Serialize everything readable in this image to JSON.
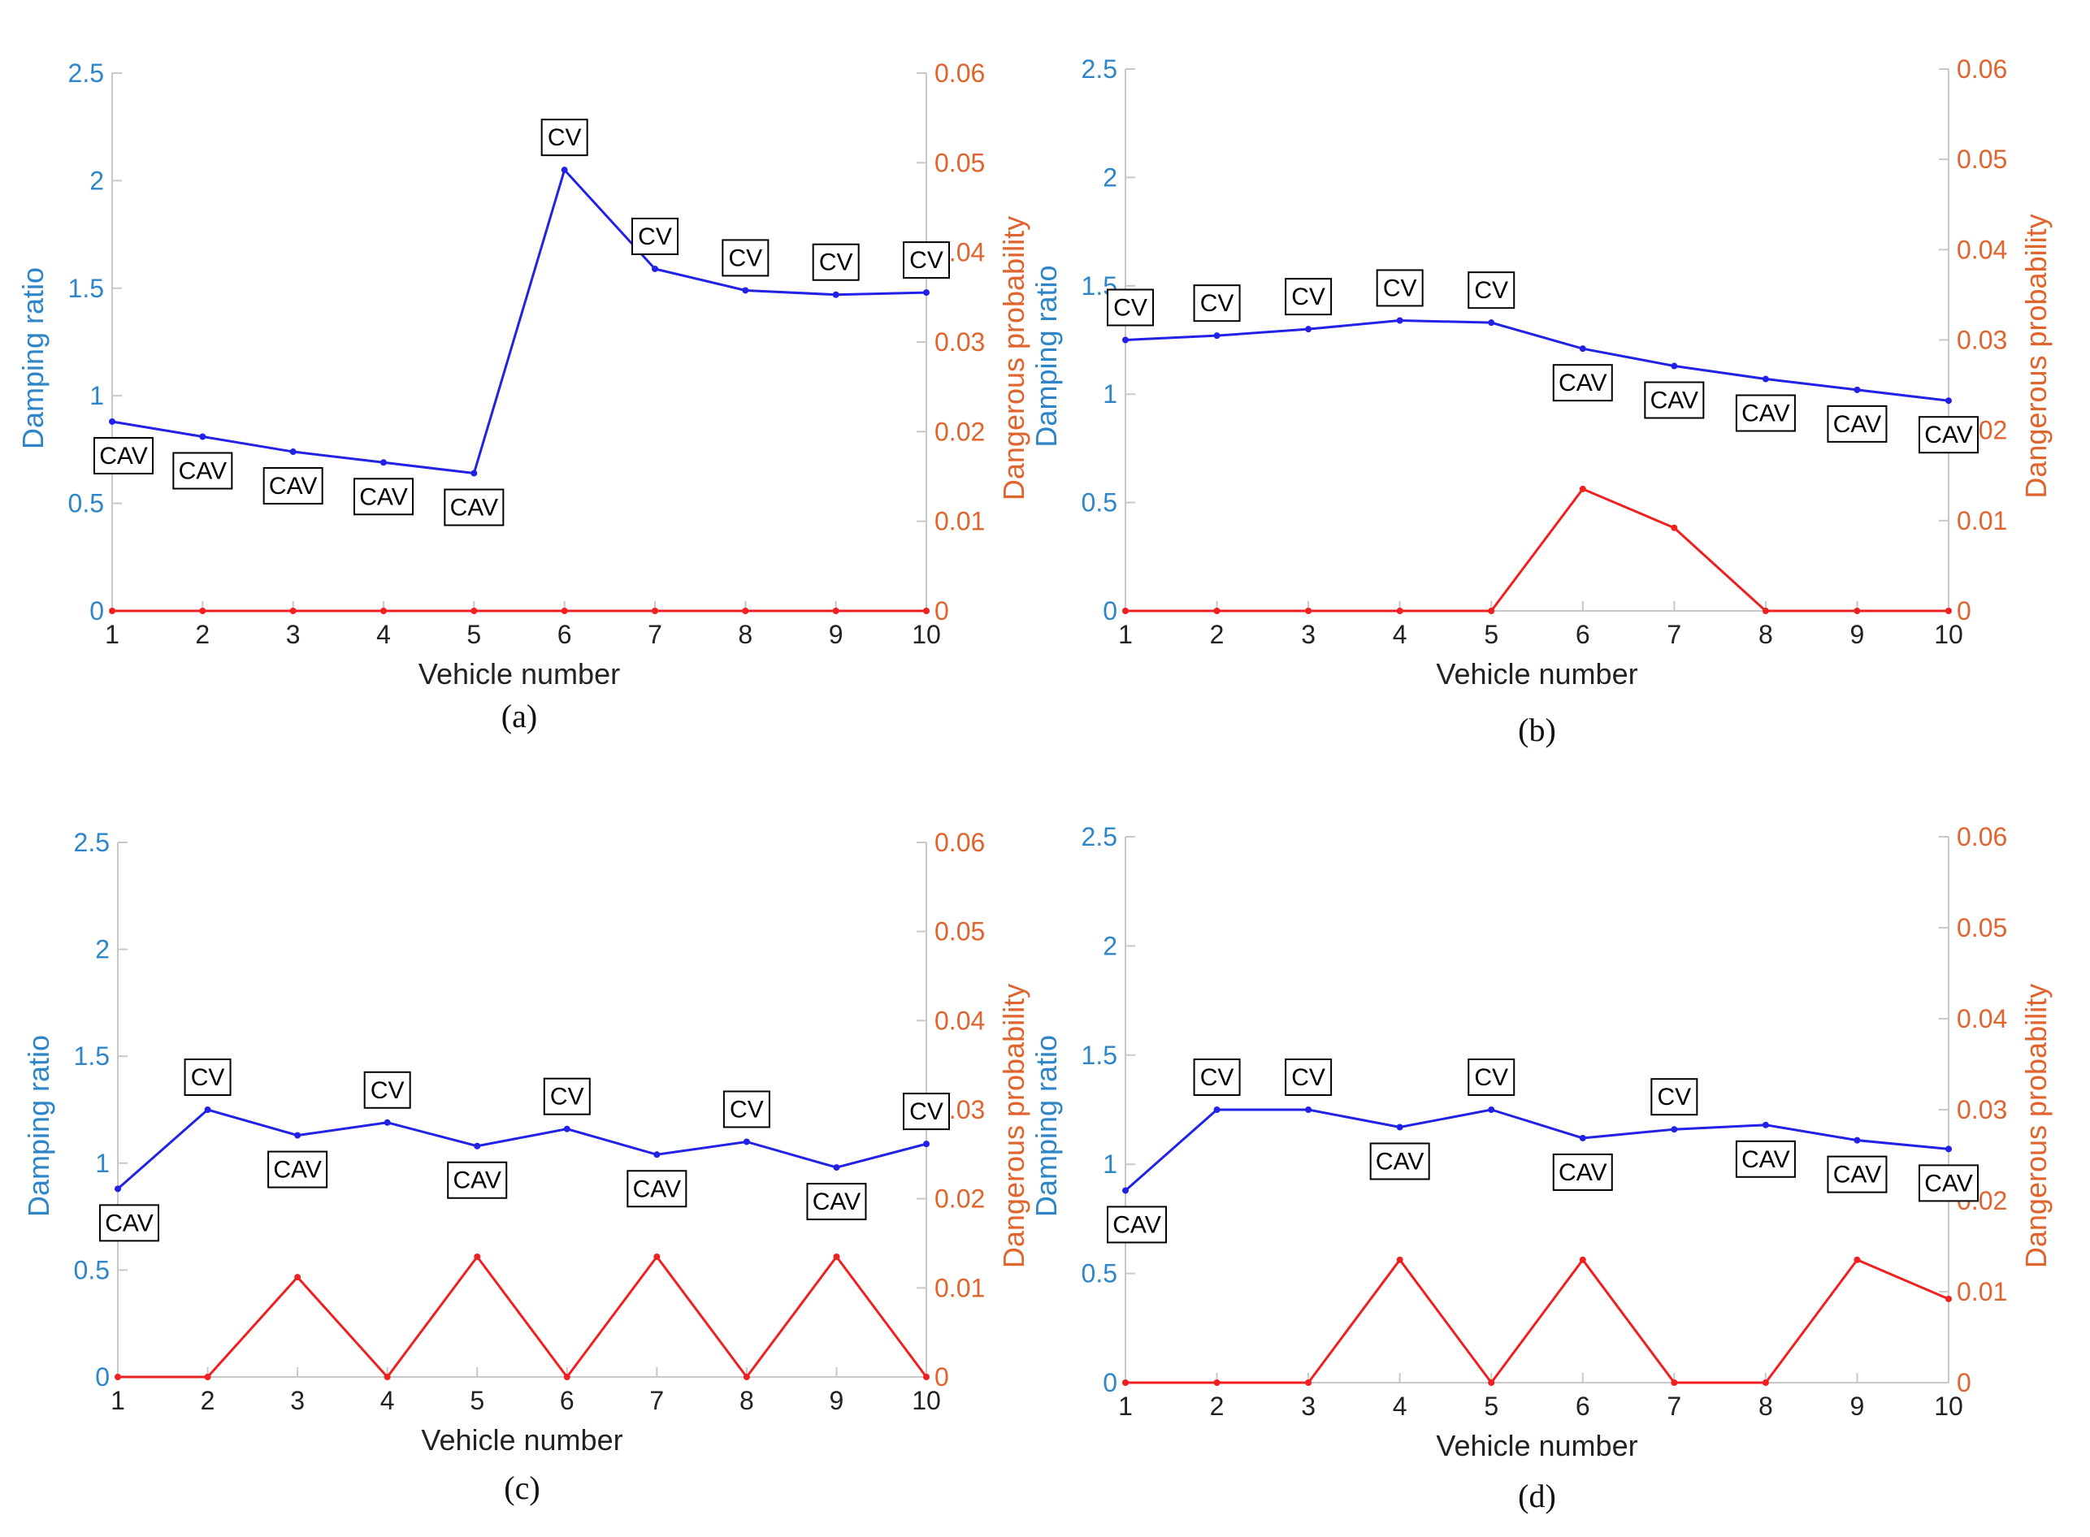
{
  "colors": {
    "left_axis": "#2e86c8",
    "right_axis": "#e0642d",
    "damping_line": "#2222e6",
    "danger_line": "#ee2020",
    "axis": "#c8c8c8"
  },
  "chart_data": [
    {
      "type": "line",
      "panel_label": "(a)",
      "xlabel": "Vehicle number",
      "ylabel_left": "Damping ratio",
      "ylabel_right": "Dangerous probability",
      "x": [
        1,
        2,
        3,
        4,
        5,
        6,
        7,
        8,
        9,
        10
      ],
      "xlim": [
        1,
        10
      ],
      "ylim_left": [
        0,
        2.5
      ],
      "ylim_right": [
        0,
        0.06
      ],
      "yticks_left": [
        "0",
        "0.5",
        "1",
        "1.5",
        "2",
        "2.5"
      ],
      "yticks_right": [
        "0",
        "0.01",
        "0.02",
        "0.03",
        "0.04",
        "0.05",
        "0.06"
      ],
      "series": [
        {
          "axis": "left",
          "values": [
            0.88,
            0.81,
            0.74,
            0.69,
            0.64,
            2.05,
            1.59,
            1.49,
            1.47,
            1.48
          ]
        },
        {
          "axis": "right",
          "values": [
            0,
            0,
            0,
            0,
            0,
            0,
            0,
            0,
            0,
            0
          ]
        }
      ],
      "annotations": [
        {
          "text": "CAV",
          "x": 1,
          "pos": "below"
        },
        {
          "text": "CAV",
          "x": 2,
          "pos": "below"
        },
        {
          "text": "CAV",
          "x": 3,
          "pos": "below"
        },
        {
          "text": "CAV",
          "x": 4,
          "pos": "below"
        },
        {
          "text": "CAV",
          "x": 5,
          "pos": "below"
        },
        {
          "text": "CV",
          "x": 6,
          "pos": "above"
        },
        {
          "text": "CV",
          "x": 7,
          "pos": "above"
        },
        {
          "text": "CV",
          "x": 8,
          "pos": "above"
        },
        {
          "text": "CV",
          "x": 9,
          "pos": "above"
        },
        {
          "text": "CV",
          "x": 10,
          "pos": "above"
        }
      ]
    },
    {
      "type": "line",
      "panel_label": "(b)",
      "xlabel": "Vehicle number",
      "ylabel_left": "Damping ratio",
      "ylabel_right": "Dangerous probability",
      "x": [
        1,
        2,
        3,
        4,
        5,
        6,
        7,
        8,
        9,
        10
      ],
      "xlim": [
        1,
        10
      ],
      "ylim_left": [
        0,
        2.5
      ],
      "ylim_right": [
        0,
        0.06
      ],
      "yticks_left": [
        "0",
        "0.5",
        "1",
        "1.5",
        "2",
        "2.5"
      ],
      "yticks_right": [
        "0",
        "0.01",
        "0.02",
        "0.03",
        "0.04",
        "0.05",
        "0.06"
      ],
      "series": [
        {
          "axis": "left",
          "values": [
            1.25,
            1.27,
            1.3,
            1.34,
            1.33,
            1.21,
            1.13,
            1.07,
            1.02,
            0.97
          ]
        },
        {
          "axis": "right",
          "values": [
            0,
            0,
            0,
            0,
            0,
            0.0135,
            0.0092,
            0,
            0,
            0
          ]
        }
      ],
      "annotations": [
        {
          "text": "CV",
          "x": 1,
          "pos": "above"
        },
        {
          "text": "CV",
          "x": 2,
          "pos": "above"
        },
        {
          "text": "CV",
          "x": 3,
          "pos": "above"
        },
        {
          "text": "CV",
          "x": 4,
          "pos": "above"
        },
        {
          "text": "CV",
          "x": 5,
          "pos": "above"
        },
        {
          "text": "CAV",
          "x": 6,
          "pos": "below"
        },
        {
          "text": "CAV",
          "x": 7,
          "pos": "below"
        },
        {
          "text": "CAV",
          "x": 8,
          "pos": "below"
        },
        {
          "text": "CAV",
          "x": 9,
          "pos": "below"
        },
        {
          "text": "CAV",
          "x": 10,
          "pos": "below"
        }
      ]
    },
    {
      "type": "line",
      "panel_label": "(c)",
      "xlabel": "Vehicle number",
      "ylabel_left": "Damping ratio",
      "ylabel_right": "Dangerous probability",
      "x": [
        1,
        2,
        3,
        4,
        5,
        6,
        7,
        8,
        9,
        10
      ],
      "xlim": [
        1,
        10
      ],
      "ylim_left": [
        0,
        2.5
      ],
      "ylim_right": [
        0,
        0.06
      ],
      "yticks_left": [
        "0",
        "0.5",
        "1",
        "1.5",
        "2",
        "2.5"
      ],
      "yticks_right": [
        "0",
        "0.01",
        "0.02",
        "0.03",
        "0.04",
        "0.05",
        "0.06"
      ],
      "series": [
        {
          "axis": "left",
          "values": [
            0.88,
            1.25,
            1.13,
            1.19,
            1.08,
            1.16,
            1.04,
            1.1,
            0.98,
            1.09
          ]
        },
        {
          "axis": "right",
          "values": [
            0,
            0,
            0.0112,
            0,
            0.0135,
            0,
            0.0135,
            0,
            0.0135,
            0
          ]
        }
      ],
      "annotations": [
        {
          "text": "CAV",
          "x": 1,
          "pos": "below"
        },
        {
          "text": "CV",
          "x": 2,
          "pos": "above"
        },
        {
          "text": "CAV",
          "x": 3,
          "pos": "below"
        },
        {
          "text": "CV",
          "x": 4,
          "pos": "above"
        },
        {
          "text": "CAV",
          "x": 5,
          "pos": "below"
        },
        {
          "text": "CV",
          "x": 6,
          "pos": "above"
        },
        {
          "text": "CAV",
          "x": 7,
          "pos": "below"
        },
        {
          "text": "CV",
          "x": 8,
          "pos": "above"
        },
        {
          "text": "CAV",
          "x": 9,
          "pos": "below"
        },
        {
          "text": "CV",
          "x": 10,
          "pos": "above"
        }
      ]
    },
    {
      "type": "line",
      "panel_label": "(d)",
      "xlabel": "Vehicle number",
      "ylabel_left": "Damping ratio",
      "ylabel_right": "Dangerous probability",
      "x": [
        1,
        2,
        3,
        4,
        5,
        6,
        7,
        8,
        9,
        10
      ],
      "xlim": [
        1,
        10
      ],
      "ylim_left": [
        0,
        2.5
      ],
      "ylim_right": [
        0,
        0.06
      ],
      "yticks_left": [
        "0",
        "0.5",
        "1",
        "1.5",
        "2",
        "2.5"
      ],
      "yticks_right": [
        "0",
        "0.01",
        "0.02",
        "0.03",
        "0.04",
        "0.05",
        "0.06"
      ],
      "series": [
        {
          "axis": "left",
          "values": [
            0.88,
            1.25,
            1.25,
            1.17,
            1.25,
            1.12,
            1.16,
            1.18,
            1.11,
            1.07
          ]
        },
        {
          "axis": "right",
          "values": [
            0,
            0,
            0,
            0.0135,
            0,
            0.0135,
            0,
            0,
            0.0135,
            0.0092
          ]
        }
      ],
      "annotations": [
        {
          "text": "CAV",
          "x": 1,
          "pos": "below"
        },
        {
          "text": "CV",
          "x": 2,
          "pos": "above"
        },
        {
          "text": "CV",
          "x": 3,
          "pos": "above"
        },
        {
          "text": "CAV",
          "x": 4,
          "pos": "below"
        },
        {
          "text": "CV",
          "x": 5,
          "pos": "above"
        },
        {
          "text": "CAV",
          "x": 6,
          "pos": "below"
        },
        {
          "text": "CV",
          "x": 7,
          "pos": "above"
        },
        {
          "text": "CAV",
          "x": 8,
          "pos": "below"
        },
        {
          "text": "CAV",
          "x": 9,
          "pos": "below"
        },
        {
          "text": "CAV",
          "x": 10,
          "pos": "below"
        }
      ]
    }
  ]
}
